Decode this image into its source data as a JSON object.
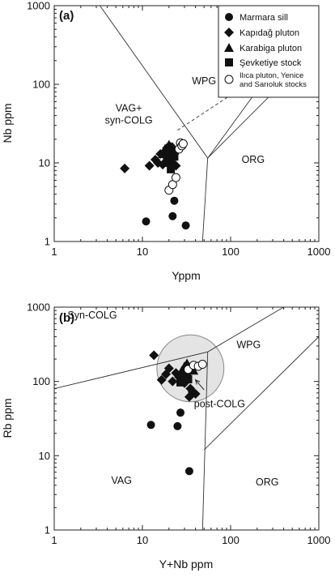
{
  "figure": {
    "colors": {
      "ink": "#111111",
      "ellipse_fill": "#e4e4e4",
      "ellipse_stroke": "#888888"
    }
  },
  "legend": {
    "items": [
      {
        "label": "Marmara sill",
        "symbol": "circle-filled"
      },
      {
        "label": "Kapıdağ pluton",
        "symbol": "diamond"
      },
      {
        "label": "Karabiga pluton",
        "symbol": "triangle"
      },
      {
        "label": "Şevketiye stock",
        "symbol": "square"
      },
      {
        "label_lines": [
          "Ilıca pluton, Yenice",
          "and Sarıoluk stocks"
        ],
        "symbol": "circle-open"
      }
    ]
  },
  "chart_data": [
    {
      "type": "scatter",
      "panel_label": "(a)",
      "xlabel": "Yppm",
      "ylabel": "Nb ppm",
      "x_scale": "log",
      "y_scale": "log",
      "xlim": [
        1,
        1000
      ],
      "ylim": [
        1,
        1000
      ],
      "x_ticks": [
        1,
        10,
        100,
        1000
      ],
      "y_ticks": [
        1,
        10,
        100,
        1000
      ],
      "tick_labels_x": [
        "1",
        "10",
        "100",
        "1000"
      ],
      "tick_labels_y": [
        "1",
        "10",
        "100",
        "1000"
      ],
      "field_labels": [
        {
          "lines": [
            "WPG"
          ],
          "x": 50,
          "y": 100
        },
        {
          "lines": [
            "VAG+",
            "syn-COLG"
          ],
          "x": 7,
          "y": 45
        },
        {
          "lines": [
            "ORG"
          ],
          "x": 180,
          "y": 10
        }
      ],
      "boundaries": [
        {
          "style": "solid",
          "points": [
            [
              3.3,
              1000
            ],
            [
              55,
              11.5
            ],
            [
              1000,
              1000
            ]
          ]
        },
        {
          "style": "solid",
          "points": [
            [
              55,
              11.5
            ],
            [
              1000,
              300
            ]
          ]
        },
        {
          "style": "solid",
          "points": [
            [
              55,
              11.5
            ],
            [
              48,
              1
            ]
          ]
        },
        {
          "style": "dashed",
          "points": [
            [
              25,
              26
            ],
            [
              1000,
              400
            ]
          ]
        }
      ],
      "series": [
        {
          "name": "Marmara sill",
          "symbol": "circle-filled",
          "points": [
            [
              11,
              1.8
            ],
            [
              22,
              2.1
            ],
            [
              23,
              3.3
            ],
            [
              31,
              1.6
            ]
          ]
        },
        {
          "name": "Kapıdağ pluton",
          "symbol": "diamond",
          "points": [
            [
              6.3,
              8.5
            ],
            [
              12,
              9.2
            ],
            [
              14,
              11
            ],
            [
              15,
              10
            ],
            [
              16,
              13
            ],
            [
              17,
              9.5
            ],
            [
              18,
              14
            ],
            [
              18.5,
              12
            ],
            [
              19,
              15.5
            ],
            [
              20,
              11
            ],
            [
              21,
              16
            ],
            [
              22,
              10
            ],
            [
              23,
              13
            ],
            [
              24,
              9.2
            ],
            [
              20,
              12
            ]
          ]
        },
        {
          "name": "Karabiga pluton",
          "symbol": "triangle",
          "points": [
            [
              17,
              13
            ],
            [
              18,
              15
            ],
            [
              19,
              14
            ],
            [
              20,
              17
            ],
            [
              21,
              14.5
            ],
            [
              22,
              16
            ],
            [
              23,
              15
            ]
          ]
        },
        {
          "name": "Şevketiye stock",
          "symbol": "square",
          "points": [
            [
              19,
              10
            ],
            [
              21,
              11.5
            ],
            [
              23,
              12
            ],
            [
              21,
              8.3
            ]
          ]
        },
        {
          "name": "Ilıca pluton, Yenice and Sarıoluk stocks",
          "symbol": "circle-open",
          "points": [
            [
              20,
              4.5
            ],
            [
              22,
              5.3
            ],
            [
              24,
              6.5
            ],
            [
              26,
              15
            ],
            [
              27,
              18
            ],
            [
              28,
              16.5
            ],
            [
              29,
              17.5
            ]
          ]
        }
      ]
    },
    {
      "type": "scatter",
      "panel_label": "(b)",
      "xlabel": "Y+Nb ppm",
      "ylabel": "Rb ppm",
      "x_scale": "log",
      "y_scale": "log",
      "xlim": [
        1,
        1000
      ],
      "ylim": [
        1,
        1000
      ],
      "x_ticks": [
        1,
        10,
        100,
        1000
      ],
      "y_ticks": [
        1,
        10,
        100,
        1000
      ],
      "tick_labels_x": [
        "1",
        "10",
        "100",
        "1000"
      ],
      "tick_labels_y": [
        "1",
        "10",
        "100",
        "1000"
      ],
      "field_labels": [
        {
          "lines": [
            "Syn-COLG"
          ],
          "x": 2.7,
          "y": 700
        },
        {
          "lines": [
            "WPG"
          ],
          "x": 160,
          "y": 280
        },
        {
          "lines": [
            "VAG"
          ],
          "x": 5.8,
          "y": 4.2
        },
        {
          "lines": [
            "ORG"
          ],
          "x": 260,
          "y": 4
        },
        {
          "lines": [
            "post-COLG"
          ],
          "x": 75,
          "y": 45
        }
      ],
      "post_colg_ellipse": {
        "center": [
          35,
          150
        ],
        "rx_decades": 0.38,
        "ry_decades": 0.45
      },
      "annotation_arrow": {
        "from": [
          50,
          77
        ],
        "to": [
          40,
          105
        ]
      },
      "boundaries": [
        {
          "style": "solid",
          "points": [
            [
              1,
              80
            ],
            [
              55,
              250
            ],
            [
              400,
              1000
            ]
          ]
        },
        {
          "style": "solid",
          "points": [
            [
              55,
              250
            ],
            [
              48,
              1
            ]
          ]
        },
        {
          "style": "solid",
          "points": [
            [
              50,
              12
            ],
            [
              1000,
              400
            ]
          ]
        }
      ],
      "series": [
        {
          "name": "Marmara sill",
          "symbol": "circle-filled",
          "points": [
            [
              12.5,
              26
            ],
            [
              25,
              25
            ],
            [
              27,
              38
            ],
            [
              34,
              6.2
            ]
          ]
        },
        {
          "name": "Kapıdağ pluton",
          "symbol": "diamond",
          "points": [
            [
              13.5,
              225
            ],
            [
              16.5,
              105
            ],
            [
              18.5,
              125
            ],
            [
              20,
              150
            ],
            [
              22,
              100
            ],
            [
              24,
              130
            ],
            [
              26,
              115
            ],
            [
              29,
              110
            ],
            [
              32,
              120
            ],
            [
              34,
              62
            ],
            [
              35,
              80
            ],
            [
              37,
              72
            ],
            [
              40,
              68
            ],
            [
              30,
              95
            ]
          ]
        },
        {
          "name": "Karabiga pluton",
          "symbol": "triangle",
          "points": [
            [
              28,
              140
            ],
            [
              30,
              160
            ],
            [
              32,
              175
            ],
            [
              34,
              155
            ],
            [
              36,
              150
            ],
            [
              38,
              140
            ]
          ]
        },
        {
          "name": "Şevketiye stock",
          "symbol": "square",
          "points": [
            [
              27,
              97
            ],
            [
              31,
              120
            ],
            [
              33,
              107
            ]
          ]
        },
        {
          "name": "Ilıca pluton, Yenice and Sarıoluk stocks",
          "symbol": "circle-open",
          "points": [
            [
              33,
              145
            ],
            [
              38,
              165
            ],
            [
              43,
              160
            ],
            [
              48,
              170
            ]
          ]
        }
      ]
    }
  ]
}
